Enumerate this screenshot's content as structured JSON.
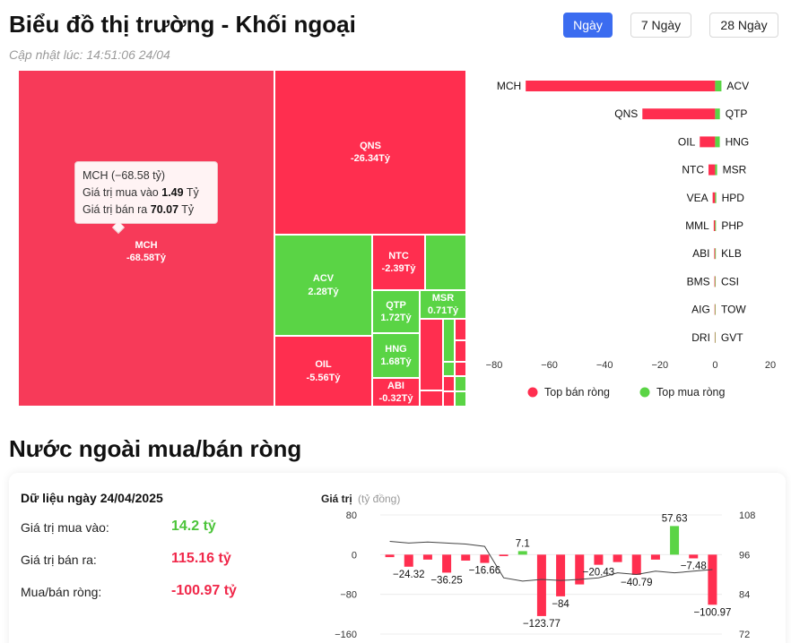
{
  "header": {
    "title": "Biểu đồ thị trường - Khối ngoại",
    "updated": "Cập nhật lúc: 14:51:06 24/04",
    "tabs": [
      {
        "label": "Ngày",
        "active": true
      },
      {
        "label": "7 Ngày",
        "active": false
      },
      {
        "label": "28 Ngày",
        "active": false
      }
    ]
  },
  "treemap": {
    "cells": [
      {
        "code": "MCH",
        "value": "-68.58Tỷ"
      },
      {
        "code": "QNS",
        "value": "-26.34Tỷ"
      },
      {
        "code": "ACV",
        "value": "2.28Tỷ"
      },
      {
        "code": "NTC",
        "value": "-2.39Tỷ"
      },
      {
        "code": "QTP",
        "value": "1.72Tỷ"
      },
      {
        "code": "MSR",
        "value": "0.71Tỷ"
      },
      {
        "code": "OIL",
        "value": "-5.56Tỷ"
      },
      {
        "code": "HNG",
        "value": "1.68Tỷ"
      },
      {
        "code": "ABI",
        "value": "-0.32Tỷ"
      }
    ],
    "tooltip": {
      "title": "MCH (−68.58 tỷ)",
      "buy_label": "Giá trị mua vào",
      "buy_value": "1.49",
      "sell_label": "Giá trị bán ra",
      "sell_value": "70.07",
      "unit": "Tỷ"
    }
  },
  "chart_data": [
    {
      "type": "bar",
      "orientation": "horizontal",
      "sell_categories": [
        "MCH",
        "QNS",
        "OIL",
        "NTC",
        "VEA",
        "MML",
        "ABI",
        "BMS",
        "AIG",
        "DRI"
      ],
      "buy_categories": [
        "ACV",
        "QTP",
        "HNG",
        "MSR",
        "HPD",
        "PHP",
        "KLB",
        "CSI",
        "TOW",
        "GVT"
      ],
      "series": [
        {
          "name": "Top bán ròng",
          "color": "#ff2e4f",
          "values": [
            -68.58,
            -26.34,
            -5.56,
            -2.39,
            -0.9,
            -0.5,
            -0.32,
            -0.25,
            -0.2,
            -0.15
          ]
        },
        {
          "name": "Top mua ròng",
          "color": "#5ad445",
          "values": [
            2.28,
            1.72,
            1.68,
            0.71,
            0.4,
            0.3,
            0.25,
            0.2,
            0.18,
            0.15
          ]
        }
      ],
      "xticks": [
        "−80",
        "−60",
        "−40",
        "−20",
        "0",
        "20"
      ],
      "xlim": [
        -80,
        20
      ],
      "legend_position": "bottom"
    },
    {
      "type": "bar",
      "title": "Giá trị",
      "unit": "(tỷ đồng)",
      "values": [
        -5,
        -24.32,
        -10,
        -36.25,
        -12,
        -16.66,
        -3,
        7.1,
        -123.77,
        -84,
        -60,
        -20.43,
        -15,
        -40.79,
        -10,
        57.63,
        -7.48,
        -100.97
      ],
      "labels": [
        "",
        "−24.32",
        "",
        "−36.25",
        "",
        "−16.66",
        "",
        "7.1",
        "−123.77",
        "−84",
        "",
        "−20.43",
        "",
        "−40.79",
        "",
        "57.63",
        "−7.48",
        "−100.97"
      ],
      "line_values": [
        100,
        99.5,
        99.8,
        99.5,
        99.2,
        98.5,
        89,
        88,
        88.5,
        88.2,
        88.5,
        89,
        90.5,
        90,
        91,
        90.5,
        91,
        91.5
      ],
      "yticks_left": [
        "80",
        "0",
        "−80",
        "−160"
      ],
      "yticks_right": [
        "108",
        "96",
        "84",
        "72"
      ],
      "ylim": [
        -160,
        80
      ],
      "ylim_right": [
        72,
        108
      ]
    }
  ],
  "net_section": {
    "title": "Nước ngoài mua/bán ròng",
    "date_label": "Dữ liệu ngày 24/04/2025",
    "stats": [
      {
        "label": "Giá trị mua vào:",
        "value": "14.2 tỷ",
        "color": "green"
      },
      {
        "label": "Giá trị bán ra:",
        "value": "115.16 tỷ",
        "color": "red"
      },
      {
        "label": "Mua/bán ròng:",
        "value": "-100.97 tỷ",
        "color": "red"
      }
    ]
  },
  "colors": {
    "sell": "#ff2e4f",
    "buy": "#5ad445",
    "accent": "#3b6cf0"
  }
}
